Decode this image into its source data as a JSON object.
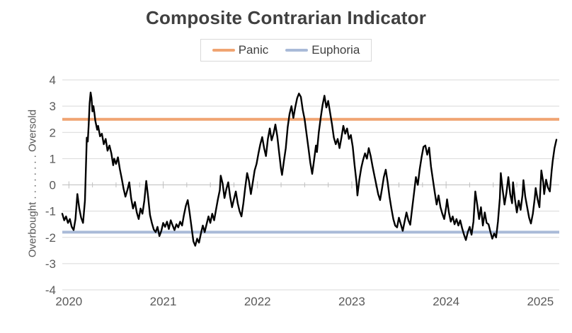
{
  "chart_data": {
    "type": "line",
    "title": "Composite Contrarian Indicator",
    "y_axis_title": "Overbought . . . . . . . . Oversold",
    "x_ticks": [
      2020,
      2021,
      2022,
      2023,
      2024,
      2025
    ],
    "y_ticks": [
      4,
      3,
      2,
      1,
      0,
      -1,
      -2,
      -3,
      -4
    ],
    "xlim": [
      2019.93,
      2025.2
    ],
    "ylim": [
      -4,
      4
    ],
    "grid": "horizontal",
    "legend_position": "top",
    "legend": [
      {
        "label": "Panic",
        "color": "#F0A472",
        "value": 2.5
      },
      {
        "label": "Euphoria",
        "color": "#A9BAD8",
        "value": -1.8
      }
    ],
    "series": [
      {
        "name": "Composite Contrarian Indicator",
        "color": "#000000",
        "points": [
          [
            2019.93,
            -1.1
          ],
          [
            2019.95,
            -1.35
          ],
          [
            2019.97,
            -1.2
          ],
          [
            2019.99,
            -1.45
          ],
          [
            2020.01,
            -1.3
          ],
          [
            2020.03,
            -1.6
          ],
          [
            2020.05,
            -1.72
          ],
          [
            2020.07,
            -1.3
          ],
          [
            2020.09,
            -0.35
          ],
          [
            2020.11,
            -0.9
          ],
          [
            2020.13,
            -1.25
          ],
          [
            2020.15,
            -1.45
          ],
          [
            2020.17,
            -0.6
          ],
          [
            2020.18,
            0.6
          ],
          [
            2020.19,
            1.8
          ],
          [
            2020.2,
            1.65
          ],
          [
            2020.21,
            2.3
          ],
          [
            2020.22,
            3.1
          ],
          [
            2020.23,
            3.52
          ],
          [
            2020.24,
            3.3
          ],
          [
            2020.25,
            2.8
          ],
          [
            2020.26,
            3.0
          ],
          [
            2020.27,
            2.75
          ],
          [
            2020.28,
            2.45
          ],
          [
            2020.3,
            2.1
          ],
          [
            2020.31,
            2.25
          ],
          [
            2020.33,
            1.85
          ],
          [
            2020.35,
            1.95
          ],
          [
            2020.37,
            1.55
          ],
          [
            2020.39,
            1.75
          ],
          [
            2020.41,
            1.3
          ],
          [
            2020.43,
            1.5
          ],
          [
            2020.45,
            1.2
          ],
          [
            2020.47,
            0.75
          ],
          [
            2020.48,
            1.0
          ],
          [
            2020.5,
            0.8
          ],
          [
            2020.52,
            1.05
          ],
          [
            2020.54,
            0.6
          ],
          [
            2020.56,
            0.25
          ],
          [
            2020.58,
            -0.15
          ],
          [
            2020.6,
            -0.45
          ],
          [
            2020.62,
            -0.2
          ],
          [
            2020.64,
            0.1
          ],
          [
            2020.66,
            -0.5
          ],
          [
            2020.68,
            -0.9
          ],
          [
            2020.7,
            -0.65
          ],
          [
            2020.72,
            -1.05
          ],
          [
            2020.74,
            -1.3
          ],
          [
            2020.76,
            -0.9
          ],
          [
            2020.78,
            -1.1
          ],
          [
            2020.8,
            -0.6
          ],
          [
            2020.82,
            0.15
          ],
          [
            2020.84,
            -0.45
          ],
          [
            2020.86,
            -1.15
          ],
          [
            2020.88,
            -1.45
          ],
          [
            2020.9,
            -1.7
          ],
          [
            2020.92,
            -1.8
          ],
          [
            2020.94,
            -1.6
          ],
          [
            2020.96,
            -1.95
          ],
          [
            2020.98,
            -1.75
          ],
          [
            2021.0,
            -1.45
          ],
          [
            2021.02,
            -1.6
          ],
          [
            2021.04,
            -1.4
          ],
          [
            2021.06,
            -1.68
          ],
          [
            2021.08,
            -1.35
          ],
          [
            2021.1,
            -1.55
          ],
          [
            2021.12,
            -1.72
          ],
          [
            2021.14,
            -1.5
          ],
          [
            2021.16,
            -1.62
          ],
          [
            2021.18,
            -1.4
          ],
          [
            2021.2,
            -1.55
          ],
          [
            2021.22,
            -1.15
          ],
          [
            2021.24,
            -0.8
          ],
          [
            2021.26,
            -0.58
          ],
          [
            2021.28,
            -1.05
          ],
          [
            2021.3,
            -1.6
          ],
          [
            2021.32,
            -2.15
          ],
          [
            2021.34,
            -2.32
          ],
          [
            2021.36,
            -2.05
          ],
          [
            2021.38,
            -2.2
          ],
          [
            2021.4,
            -1.85
          ],
          [
            2021.42,
            -1.55
          ],
          [
            2021.44,
            -1.8
          ],
          [
            2021.46,
            -1.5
          ],
          [
            2021.48,
            -1.2
          ],
          [
            2021.5,
            -1.45
          ],
          [
            2021.52,
            -1.1
          ],
          [
            2021.54,
            -1.35
          ],
          [
            2021.56,
            -0.95
          ],
          [
            2021.58,
            -0.55
          ],
          [
            2021.6,
            -0.2
          ],
          [
            2021.61,
            0.35
          ],
          [
            2021.63,
            0.05
          ],
          [
            2021.65,
            -0.5
          ],
          [
            2021.67,
            -0.15
          ],
          [
            2021.69,
            0.1
          ],
          [
            2021.71,
            -0.45
          ],
          [
            2021.73,
            -0.85
          ],
          [
            2021.75,
            -0.55
          ],
          [
            2021.77,
            -0.25
          ],
          [
            2021.79,
            -0.7
          ],
          [
            2021.81,
            -1.0
          ],
          [
            2021.83,
            -1.2
          ],
          [
            2021.85,
            -0.7
          ],
          [
            2021.87,
            -0.1
          ],
          [
            2021.89,
            0.45
          ],
          [
            2021.91,
            0.15
          ],
          [
            2021.93,
            -0.35
          ],
          [
            2021.95,
            0.1
          ],
          [
            2021.97,
            0.55
          ],
          [
            2021.99,
            0.8
          ],
          [
            2022.01,
            1.2
          ],
          [
            2022.03,
            1.55
          ],
          [
            2022.05,
            1.82
          ],
          [
            2022.07,
            1.4
          ],
          [
            2022.09,
            1.1
          ],
          [
            2022.11,
            1.75
          ],
          [
            2022.13,
            2.15
          ],
          [
            2022.15,
            1.7
          ],
          [
            2022.17,
            1.95
          ],
          [
            2022.19,
            2.3
          ],
          [
            2022.21,
            1.85
          ],
          [
            2022.23,
            1.2
          ],
          [
            2022.25,
            0.6
          ],
          [
            2022.26,
            0.38
          ],
          [
            2022.28,
            0.9
          ],
          [
            2022.3,
            1.4
          ],
          [
            2022.32,
            2.2
          ],
          [
            2022.34,
            2.7
          ],
          [
            2022.36,
            3.0
          ],
          [
            2022.38,
            2.55
          ],
          [
            2022.4,
            2.95
          ],
          [
            2022.42,
            3.3
          ],
          [
            2022.44,
            3.48
          ],
          [
            2022.46,
            3.35
          ],
          [
            2022.48,
            2.85
          ],
          [
            2022.5,
            2.5
          ],
          [
            2022.52,
            1.95
          ],
          [
            2022.54,
            1.4
          ],
          [
            2022.56,
            0.85
          ],
          [
            2022.58,
            0.42
          ],
          [
            2022.6,
            0.95
          ],
          [
            2022.62,
            1.5
          ],
          [
            2022.63,
            1.25
          ],
          [
            2022.65,
            2.0
          ],
          [
            2022.67,
            2.55
          ],
          [
            2022.69,
            3.05
          ],
          [
            2022.71,
            3.4
          ],
          [
            2022.73,
            2.95
          ],
          [
            2022.75,
            3.2
          ],
          [
            2022.77,
            2.75
          ],
          [
            2022.79,
            2.3
          ],
          [
            2022.81,
            1.8
          ],
          [
            2022.83,
            1.55
          ],
          [
            2022.85,
            1.75
          ],
          [
            2022.87,
            1.4
          ],
          [
            2022.89,
            1.8
          ],
          [
            2022.91,
            2.25
          ],
          [
            2022.93,
            1.95
          ],
          [
            2022.95,
            2.15
          ],
          [
            2022.97,
            1.75
          ],
          [
            2022.99,
            1.9
          ],
          [
            2023.01,
            1.45
          ],
          [
            2023.03,
            0.75
          ],
          [
            2023.05,
            0.1
          ],
          [
            2023.06,
            -0.4
          ],
          [
            2023.08,
            0.2
          ],
          [
            2023.1,
            0.65
          ],
          [
            2023.12,
            0.95
          ],
          [
            2023.14,
            1.2
          ],
          [
            2023.16,
            1.0
          ],
          [
            2023.18,
            1.4
          ],
          [
            2023.2,
            1.1
          ],
          [
            2023.22,
            0.7
          ],
          [
            2023.24,
            0.35
          ],
          [
            2023.26,
            0.0
          ],
          [
            2023.28,
            -0.35
          ],
          [
            2023.3,
            -0.58
          ],
          [
            2023.32,
            -0.15
          ],
          [
            2023.34,
            0.3
          ],
          [
            2023.36,
            0.58
          ],
          [
            2023.38,
            0.1
          ],
          [
            2023.4,
            -0.45
          ],
          [
            2023.42,
            -0.9
          ],
          [
            2023.44,
            -1.3
          ],
          [
            2023.46,
            -1.55
          ],
          [
            2023.48,
            -1.62
          ],
          [
            2023.5,
            -1.25
          ],
          [
            2023.52,
            -1.5
          ],
          [
            2023.54,
            -1.75
          ],
          [
            2023.56,
            -1.4
          ],
          [
            2023.58,
            -1.05
          ],
          [
            2023.6,
            -1.35
          ],
          [
            2023.62,
            -1.52
          ],
          [
            2023.64,
            -0.9
          ],
          [
            2023.66,
            -0.3
          ],
          [
            2023.68,
            0.3
          ],
          [
            2023.7,
            0.0
          ],
          [
            2023.72,
            0.6
          ],
          [
            2023.74,
            1.05
          ],
          [
            2023.76,
            1.45
          ],
          [
            2023.78,
            1.5
          ],
          [
            2023.8,
            1.15
          ],
          [
            2023.82,
            1.42
          ],
          [
            2023.84,
            0.7
          ],
          [
            2023.86,
            0.2
          ],
          [
            2023.88,
            -0.3
          ],
          [
            2023.9,
            -0.75
          ],
          [
            2023.92,
            -0.4
          ],
          [
            2023.94,
            -0.85
          ],
          [
            2023.96,
            -1.1
          ],
          [
            2023.98,
            -1.3
          ],
          [
            2024.0,
            -0.85
          ],
          [
            2024.01,
            -0.55
          ],
          [
            2024.03,
            -1.05
          ],
          [
            2024.05,
            -1.4
          ],
          [
            2024.07,
            -1.2
          ],
          [
            2024.09,
            -1.5
          ],
          [
            2024.11,
            -1.3
          ],
          [
            2024.13,
            -1.55
          ],
          [
            2024.15,
            -1.35
          ],
          [
            2024.17,
            -1.65
          ],
          [
            2024.19,
            -1.9
          ],
          [
            2024.21,
            -2.1
          ],
          [
            2024.23,
            -1.8
          ],
          [
            2024.25,
            -1.6
          ],
          [
            2024.27,
            -1.9
          ],
          [
            2024.29,
            -1.4
          ],
          [
            2024.31,
            -0.25
          ],
          [
            2024.33,
            -0.75
          ],
          [
            2024.35,
            -1.3
          ],
          [
            2024.37,
            -0.85
          ],
          [
            2024.39,
            -1.55
          ],
          [
            2024.41,
            -1.05
          ],
          [
            2024.43,
            -1.45
          ],
          [
            2024.45,
            -1.5
          ],
          [
            2024.47,
            -1.8
          ],
          [
            2024.49,
            -2.05
          ],
          [
            2024.51,
            -1.85
          ],
          [
            2024.53,
            -2.0
          ],
          [
            2024.55,
            -1.4
          ],
          [
            2024.57,
            -0.5
          ],
          [
            2024.58,
            0.45
          ],
          [
            2024.6,
            -0.2
          ],
          [
            2024.62,
            -0.75
          ],
          [
            2024.64,
            -0.3
          ],
          [
            2024.66,
            0.3
          ],
          [
            2024.68,
            -0.35
          ],
          [
            2024.7,
            -0.7
          ],
          [
            2024.71,
            0.1
          ],
          [
            2024.73,
            -0.55
          ],
          [
            2024.75,
            -1.05
          ],
          [
            2024.77,
            -0.6
          ],
          [
            2024.79,
            -0.95
          ],
          [
            2024.81,
            -0.4
          ],
          [
            2024.82,
            0.18
          ],
          [
            2024.84,
            -0.45
          ],
          [
            2024.86,
            -0.85
          ],
          [
            2024.88,
            -1.25
          ],
          [
            2024.9,
            -1.47
          ],
          [
            2024.92,
            -1.1
          ],
          [
            2024.94,
            -0.5
          ],
          [
            2024.95,
            -0.12
          ],
          [
            2024.97,
            -0.55
          ],
          [
            2024.99,
            -0.85
          ],
          [
            2025.01,
            0.55
          ],
          [
            2025.03,
            0.1
          ],
          [
            2025.04,
            -0.35
          ],
          [
            2025.06,
            0.2
          ],
          [
            2025.08,
            -0.1
          ],
          [
            2025.1,
            -0.25
          ],
          [
            2025.12,
            0.55
          ],
          [
            2025.13,
            0.9
          ],
          [
            2025.15,
            1.4
          ],
          [
            2025.17,
            1.72
          ]
        ]
      }
    ]
  },
  "colors": {
    "title_text": "#404040",
    "axis_text": "#595959",
    "gridline": "#d9d9d9",
    "zero_axis": "#bfbfbf",
    "series_line": "#000000",
    "panic_line": "#F0A472",
    "euphoria_line": "#A9BAD8",
    "legend_border": "#d9d9d9"
  }
}
